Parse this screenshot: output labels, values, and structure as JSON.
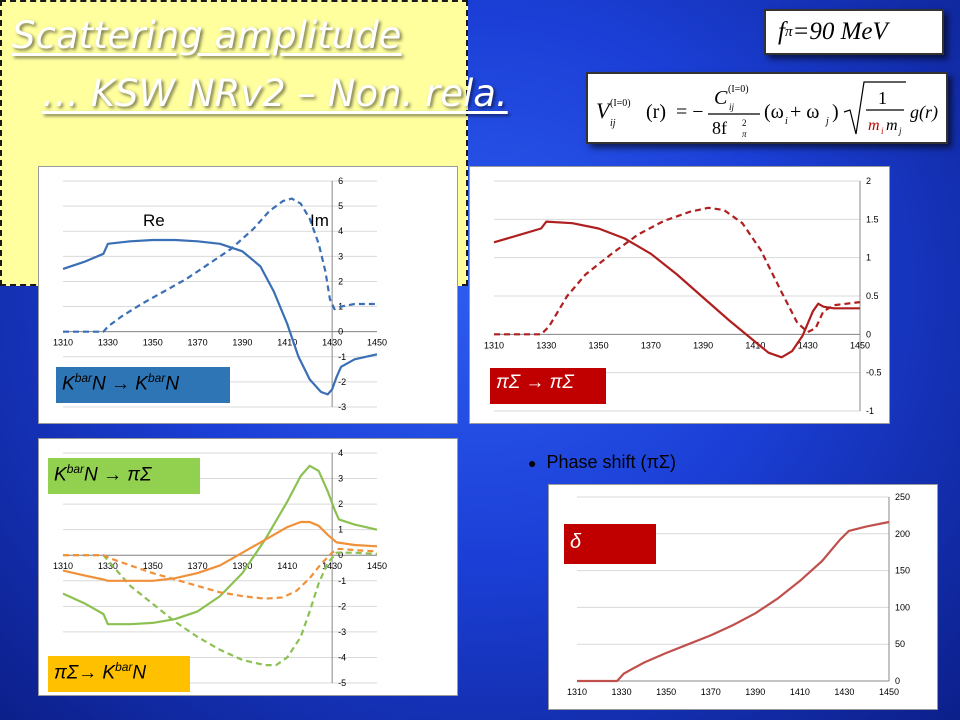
{
  "title_line1": "Scattering amplitude ",
  "title_line2": "… KSW NRv2 – Non. rela.",
  "fpi_box": {
    "f": "f",
    "sub": "π",
    "rest": "=90 MeV"
  },
  "formula": {
    "V": "V",
    "V_sup": "(I=0)",
    "V_sub": "ij",
    "r_arg": "(r)",
    "eq": "= −",
    "C": "C",
    "C_sup": "(I=0)",
    "C_sub": "ij",
    "den": "8f",
    "den_sup": "2",
    "den_sub": "π",
    "omega": "(ω",
    "omega_i": "i",
    "plus": " + ω",
    "omega_j": "j",
    "close": ")",
    "one": "1",
    "m": "m",
    "mi": "i",
    "mj": "j",
    "g": "g(r)"
  },
  "labels": {
    "p1": {
      "pre": "K",
      "sup1": "bar",
      "mid": "N → K",
      "sup2": "bar",
      "post": "N"
    },
    "p1_re": "Re",
    "p1_im": "Im",
    "p2": "πΣ → πΣ",
    "p3": {
      "pre": "K",
      "sup": "bar",
      "post": "N → πΣ"
    },
    "p4": {
      "pre": "πΣ→ K",
      "sup": "bar",
      "post": "N"
    },
    "bullet": "Phase shift (πΣ)",
    "delta": "δ"
  },
  "colors": {
    "blue": "#3a6fb5",
    "red": "#b01f1f",
    "green": "#8cc152",
    "orange": "#f0913a",
    "phase": "#c0504d"
  },
  "chart_data": [
    {
      "type": "line",
      "id": "p1",
      "x_ticks": [
        "1310",
        "1330",
        "1350",
        "1370",
        "1390",
        "1410",
        "1430",
        "1450"
      ],
      "xlim": [
        1310,
        1450
      ],
      "ylim": [
        -3,
        6
      ],
      "y_ticks": [
        "-3",
        "-2",
        "-1",
        "0",
        "1",
        "2",
        "3",
        "4",
        "5",
        "6"
      ],
      "series": [
        {
          "name": "Re",
          "style": "solid",
          "color": "blue",
          "points": [
            [
              1310,
              2.5
            ],
            [
              1320,
              2.8
            ],
            [
              1328,
              3.1
            ],
            [
              1330,
              3.5
            ],
            [
              1340,
              3.6
            ],
            [
              1350,
              3.65
            ],
            [
              1360,
              3.65
            ],
            [
              1370,
              3.6
            ],
            [
              1380,
              3.5
            ],
            [
              1390,
              3.2
            ],
            [
              1398,
              2.6
            ],
            [
              1404,
              1.6
            ],
            [
              1410,
              0.3
            ],
            [
              1415,
              -1.0
            ],
            [
              1420,
              -1.9
            ],
            [
              1425,
              -2.4
            ],
            [
              1428,
              -2.5
            ],
            [
              1430,
              -2.3
            ],
            [
              1432,
              -1.8
            ],
            [
              1434,
              -1.4
            ],
            [
              1440,
              -1.1
            ],
            [
              1450,
              -0.9
            ]
          ]
        },
        {
          "name": "Im",
          "style": "dash",
          "color": "blue",
          "points": [
            [
              1310,
              0
            ],
            [
              1328,
              0
            ],
            [
              1330,
              0.2
            ],
            [
              1336,
              0.6
            ],
            [
              1345,
              1.1
            ],
            [
              1355,
              1.6
            ],
            [
              1365,
              2.1
            ],
            [
              1375,
              2.7
            ],
            [
              1385,
              3.3
            ],
            [
              1395,
              4.1
            ],
            [
              1402,
              4.8
            ],
            [
              1408,
              5.2
            ],
            [
              1412,
              5.3
            ],
            [
              1416,
              5.1
            ],
            [
              1420,
              4.5
            ],
            [
              1424,
              3.5
            ],
            [
              1427,
              2.4
            ],
            [
              1429,
              1.3
            ],
            [
              1431,
              0.9
            ],
            [
              1434,
              1.0
            ],
            [
              1440,
              1.1
            ],
            [
              1450,
              1.1
            ]
          ]
        }
      ]
    },
    {
      "type": "line",
      "id": "p2",
      "x_ticks": [
        "1310",
        "1330",
        "1350",
        "1370",
        "1390",
        "1410",
        "1430",
        "1450"
      ],
      "xlim": [
        1310,
        1450
      ],
      "ylim": [
        -1,
        2
      ],
      "y_ticks": [
        "-1",
        "-0.5",
        "0",
        "0.5",
        "1",
        "1.5",
        "2"
      ],
      "series": [
        {
          "name": "",
          "style": "solid",
          "color": "red",
          "points": [
            [
              1310,
              1.2
            ],
            [
              1320,
              1.3
            ],
            [
              1328,
              1.38
            ],
            [
              1330,
              1.47
            ],
            [
              1340,
              1.45
            ],
            [
              1350,
              1.38
            ],
            [
              1360,
              1.25
            ],
            [
              1370,
              1.05
            ],
            [
              1380,
              0.78
            ],
            [
              1390,
              0.48
            ],
            [
              1400,
              0.18
            ],
            [
              1410,
              -0.1
            ],
            [
              1415,
              -0.24
            ],
            [
              1420,
              -0.3
            ],
            [
              1424,
              -0.22
            ],
            [
              1428,
              -0.02
            ],
            [
              1432,
              0.3
            ],
            [
              1434,
              0.4
            ],
            [
              1436,
              0.36
            ],
            [
              1440,
              0.34
            ],
            [
              1450,
              0.34
            ]
          ]
        },
        {
          "name": "",
          "style": "dash",
          "color": "red",
          "points": [
            [
              1310,
              0
            ],
            [
              1328,
              0
            ],
            [
              1331,
              0.1
            ],
            [
              1338,
              0.5
            ],
            [
              1345,
              0.78
            ],
            [
              1355,
              1.05
            ],
            [
              1365,
              1.3
            ],
            [
              1375,
              1.48
            ],
            [
              1385,
              1.6
            ],
            [
              1392,
              1.65
            ],
            [
              1398,
              1.62
            ],
            [
              1405,
              1.45
            ],
            [
              1412,
              1.1
            ],
            [
              1420,
              0.55
            ],
            [
              1426,
              0.15
            ],
            [
              1430,
              0.03
            ],
            [
              1433,
              0.08
            ],
            [
              1436,
              0.3
            ],
            [
              1440,
              0.38
            ],
            [
              1450,
              0.42
            ]
          ]
        }
      ]
    },
    {
      "type": "line",
      "id": "p3",
      "x_ticks": [
        "1310",
        "1330",
        "1350",
        "1370",
        "1390",
        "1410",
        "1430",
        "1450"
      ],
      "xlim": [
        1310,
        1450
      ],
      "ylim": [
        -5,
        4
      ],
      "y_ticks": [
        "-5",
        "-4",
        "-3",
        "-2",
        "-1",
        "0",
        "1",
        "2",
        "3",
        "4"
      ],
      "series": [
        {
          "name": "",
          "style": "solid",
          "color": "green",
          "points": [
            [
              1310,
              -1.5
            ],
            [
              1320,
              -1.9
            ],
            [
              1328,
              -2.3
            ],
            [
              1330,
              -2.7
            ],
            [
              1340,
              -2.7
            ],
            [
              1350,
              -2.65
            ],
            [
              1360,
              -2.5
            ],
            [
              1370,
              -2.2
            ],
            [
              1380,
              -1.6
            ],
            [
              1390,
              -0.7
            ],
            [
              1400,
              0.6
            ],
            [
              1410,
              2.1
            ],
            [
              1416,
              3.1
            ],
            [
              1420,
              3.5
            ],
            [
              1424,
              3.3
            ],
            [
              1428,
              2.5
            ],
            [
              1431,
              1.8
            ],
            [
              1433,
              1.4
            ],
            [
              1440,
              1.2
            ],
            [
              1450,
              1.0
            ]
          ]
        },
        {
          "name": "",
          "style": "dash",
          "color": "green",
          "points": [
            [
              1310,
              0
            ],
            [
              1328,
              0
            ],
            [
              1332,
              -0.4
            ],
            [
              1340,
              -1.2
            ],
            [
              1350,
              -1.9
            ],
            [
              1360,
              -2.6
            ],
            [
              1370,
              -3.2
            ],
            [
              1380,
              -3.7
            ],
            [
              1390,
              -4.1
            ],
            [
              1400,
              -4.3
            ],
            [
              1405,
              -4.3
            ],
            [
              1410,
              -4.0
            ],
            [
              1416,
              -3.2
            ],
            [
              1420,
              -2.2
            ],
            [
              1424,
              -1.1
            ],
            [
              1428,
              -0.3
            ],
            [
              1432,
              0.1
            ],
            [
              1440,
              0.1
            ],
            [
              1450,
              0.05
            ]
          ]
        },
        {
          "name": "",
          "style": "solid",
          "color": "orange",
          "points": [
            [
              1310,
              -0.6
            ],
            [
              1320,
              -0.8
            ],
            [
              1328,
              -0.95
            ],
            [
              1330,
              -1.0
            ],
            [
              1340,
              -1.0
            ],
            [
              1350,
              -1.0
            ],
            [
              1360,
              -0.9
            ],
            [
              1370,
              -0.7
            ],
            [
              1380,
              -0.4
            ],
            [
              1390,
              0.1
            ],
            [
              1400,
              0.6
            ],
            [
              1410,
              1.1
            ],
            [
              1416,
              1.3
            ],
            [
              1420,
              1.3
            ],
            [
              1424,
              1.15
            ],
            [
              1428,
              0.8
            ],
            [
              1432,
              0.5
            ],
            [
              1440,
              0.4
            ],
            [
              1450,
              0.35
            ]
          ]
        },
        {
          "name": "",
          "style": "dash",
          "color": "orange",
          "points": [
            [
              1310,
              0
            ],
            [
              1328,
              0
            ],
            [
              1332,
              -0.15
            ],
            [
              1340,
              -0.4
            ],
            [
              1350,
              -0.7
            ],
            [
              1360,
              -0.95
            ],
            [
              1370,
              -1.2
            ],
            [
              1380,
              -1.45
            ],
            [
              1390,
              -1.6
            ],
            [
              1400,
              -1.7
            ],
            [
              1408,
              -1.65
            ],
            [
              1414,
              -1.4
            ],
            [
              1420,
              -0.9
            ],
            [
              1425,
              -0.35
            ],
            [
              1430,
              0.1
            ],
            [
              1433,
              0.25
            ],
            [
              1440,
              0.2
            ],
            [
              1450,
              0.15
            ]
          ]
        }
      ]
    },
    {
      "type": "line",
      "id": "p4",
      "x_ticks": [
        "1310",
        "1330",
        "1350",
        "1370",
        "1390",
        "1410",
        "1430",
        "1450"
      ],
      "xlim": [
        1310,
        1450
      ],
      "ylim": [
        0,
        250
      ],
      "y_ticks": [
        "0",
        "50",
        "100",
        "150",
        "200",
        "250"
      ],
      "series": [
        {
          "name": "",
          "style": "solid",
          "color": "phase",
          "points": [
            [
              1310,
              0
            ],
            [
              1328,
              0
            ],
            [
              1331,
              10
            ],
            [
              1340,
              25
            ],
            [
              1350,
              38
            ],
            [
              1360,
              50
            ],
            [
              1370,
              62
            ],
            [
              1380,
              76
            ],
            [
              1390,
              92
            ],
            [
              1400,
              112
            ],
            [
              1410,
              136
            ],
            [
              1420,
              163
            ],
            [
              1428,
              192
            ],
            [
              1432,
              204
            ],
            [
              1440,
              210
            ],
            [
              1450,
              216
            ]
          ]
        }
      ]
    }
  ]
}
